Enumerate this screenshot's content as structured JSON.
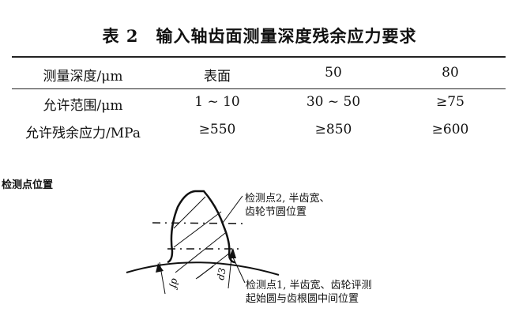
{
  "table": {
    "title": "表 2　输入轴齿面测量深度残余应力要求",
    "header": [
      "测量深度/μm",
      "表面",
      "50",
      "80"
    ],
    "rows": [
      [
        "允许范围/μm",
        "1 ~ 10",
        "30 ~ 50",
        "≥75"
      ],
      [
        "允许残余应力/MPa",
        "≥550",
        "≥850",
        "≥600"
      ]
    ]
  },
  "figure": {
    "caption": "检测点位置",
    "label_point2": [
      "检测点2, 半齿宽、",
      "齿轮节圆位置"
    ],
    "label_point1": [
      "检测点1, 半齿宽、齿轮评测",
      "起始圆与齿根圆中间位置"
    ],
    "symbol_df": "df",
    "symbol_d3": "d3"
  }
}
